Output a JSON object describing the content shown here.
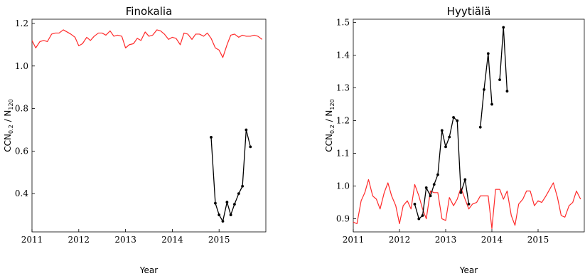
{
  "chart_data": [
    {
      "type": "line",
      "title": "Finokalia",
      "xlabel": "Year",
      "ylabel": "CCN_0.2 / N_120",
      "ylabel_parts": {
        "main": "CCN",
        "sub1": "0.2",
        "mid": " / N",
        "sub2": "120"
      },
      "xlim": [
        2011,
        2016
      ],
      "ylim": [
        0.22,
        1.22
      ],
      "xticks": [
        2011,
        2012,
        2013,
        2014,
        2015
      ],
      "xtick_labels": [
        "2011",
        "2012",
        "2013",
        "2014",
        "2015"
      ],
      "yticks": [
        0.4,
        0.6,
        0.8,
        1.0,
        1.2
      ],
      "ytick_labels": [
        "0.4",
        "0.6",
        "0.8",
        "1.0",
        "1.2"
      ],
      "grid": false,
      "colors": {
        "model": "#ff2a2a",
        "observed": "#000000"
      },
      "series": [
        {
          "style": "line",
          "color": "#ff2a2a",
          "points": [
            [
              2011.0,
              1.12
            ],
            [
              2011.08,
              1.085
            ],
            [
              2011.17,
              1.115
            ],
            [
              2011.25,
              1.12
            ],
            [
              2011.33,
              1.115
            ],
            [
              2011.42,
              1.15
            ],
            [
              2011.5,
              1.155
            ],
            [
              2011.58,
              1.155
            ],
            [
              2011.67,
              1.17
            ],
            [
              2011.75,
              1.16
            ],
            [
              2011.83,
              1.15
            ],
            [
              2011.92,
              1.135
            ],
            [
              2012.0,
              1.095
            ],
            [
              2012.08,
              1.105
            ],
            [
              2012.17,
              1.135
            ],
            [
              2012.25,
              1.12
            ],
            [
              2012.33,
              1.14
            ],
            [
              2012.42,
              1.155
            ],
            [
              2012.5,
              1.155
            ],
            [
              2012.58,
              1.145
            ],
            [
              2012.67,
              1.165
            ],
            [
              2012.75,
              1.14
            ],
            [
              2012.83,
              1.145
            ],
            [
              2012.92,
              1.14
            ],
            [
              2013.0,
              1.085
            ],
            [
              2013.08,
              1.1
            ],
            [
              2013.17,
              1.105
            ],
            [
              2013.25,
              1.13
            ],
            [
              2013.33,
              1.12
            ],
            [
              2013.42,
              1.16
            ],
            [
              2013.5,
              1.14
            ],
            [
              2013.58,
              1.145
            ],
            [
              2013.67,
              1.17
            ],
            [
              2013.75,
              1.165
            ],
            [
              2013.83,
              1.15
            ],
            [
              2013.92,
              1.125
            ],
            [
              2014.0,
              1.135
            ],
            [
              2014.08,
              1.13
            ],
            [
              2014.17,
              1.1
            ],
            [
              2014.25,
              1.155
            ],
            [
              2014.33,
              1.15
            ],
            [
              2014.42,
              1.125
            ],
            [
              2014.5,
              1.15
            ],
            [
              2014.58,
              1.15
            ],
            [
              2014.67,
              1.14
            ],
            [
              2014.75,
              1.155
            ],
            [
              2014.83,
              1.13
            ],
            [
              2014.92,
              1.085
            ],
            [
              2015.0,
              1.075
            ],
            [
              2015.08,
              1.04
            ],
            [
              2015.17,
              1.1
            ],
            [
              2015.25,
              1.145
            ],
            [
              2015.33,
              1.15
            ],
            [
              2015.42,
              1.135
            ],
            [
              2015.5,
              1.145
            ],
            [
              2015.58,
              1.14
            ],
            [
              2015.67,
              1.14
            ],
            [
              2015.75,
              1.145
            ],
            [
              2015.83,
              1.14
            ],
            [
              2015.92,
              1.125
            ]
          ]
        },
        {
          "style": "line-markers",
          "color": "#000000",
          "points": [
            [
              2014.83,
              0.665
            ],
            [
              2014.92,
              0.355
            ],
            [
              2015.0,
              0.3
            ],
            [
              2015.08,
              0.27
            ],
            [
              2015.17,
              0.36
            ],
            [
              2015.25,
              0.3
            ],
            [
              2015.33,
              0.35
            ],
            [
              2015.42,
              0.4
            ],
            [
              2015.5,
              0.435
            ],
            [
              2015.58,
              0.7
            ],
            [
              2015.67,
              0.62
            ]
          ]
        }
      ]
    },
    {
      "type": "line",
      "title": "Hyytiälä",
      "xlabel": "Year",
      "ylabel": "CCN_0.2 / N_120",
      "ylabel_parts": {
        "main": "CCN",
        "sub1": "0.2",
        "mid": " / N",
        "sub2": "120"
      },
      "xlim": [
        2011,
        2016
      ],
      "ylim": [
        0.86,
        1.51
      ],
      "xticks": [
        2011,
        2012,
        2013,
        2014,
        2015
      ],
      "xtick_labels": [
        "2011",
        "2012",
        "2013",
        "2014",
        "2015"
      ],
      "yticks": [
        0.9,
        1.0,
        1.1,
        1.2,
        1.3,
        1.4,
        1.5
      ],
      "ytick_labels": [
        "0.9",
        "1.0",
        "1.1",
        "1.2",
        "1.3",
        "1.4",
        "1.5"
      ],
      "grid": false,
      "colors": {
        "model": "#ff2a2a",
        "observed": "#000000"
      },
      "series": [
        {
          "style": "line",
          "color": "#ff2a2a",
          "points": [
            [
              2011.0,
              0.89
            ],
            [
              2011.08,
              0.885
            ],
            [
              2011.17,
              0.955
            ],
            [
              2011.25,
              0.98
            ],
            [
              2011.33,
              1.02
            ],
            [
              2011.42,
              0.97
            ],
            [
              2011.5,
              0.96
            ],
            [
              2011.58,
              0.93
            ],
            [
              2011.67,
              0.98
            ],
            [
              2011.75,
              1.01
            ],
            [
              2011.83,
              0.97
            ],
            [
              2011.92,
              0.94
            ],
            [
              2012.0,
              0.885
            ],
            [
              2012.08,
              0.94
            ],
            [
              2012.17,
              0.955
            ],
            [
              2012.25,
              0.93
            ],
            [
              2012.33,
              1.005
            ],
            [
              2012.42,
              0.97
            ],
            [
              2012.5,
              0.93
            ],
            [
              2012.58,
              0.9
            ],
            [
              2012.67,
              0.985
            ],
            [
              2012.75,
              0.98
            ],
            [
              2012.83,
              0.98
            ],
            [
              2012.92,
              0.9
            ],
            [
              2013.0,
              0.895
            ],
            [
              2013.08,
              0.965
            ],
            [
              2013.17,
              0.94
            ],
            [
              2013.25,
              0.96
            ],
            [
              2013.33,
              0.995
            ],
            [
              2013.42,
              0.96
            ],
            [
              2013.5,
              0.93
            ],
            [
              2013.58,
              0.945
            ],
            [
              2013.67,
              0.95
            ],
            [
              2013.75,
              0.97
            ],
            [
              2013.83,
              0.97
            ],
            [
              2013.92,
              0.97
            ],
            [
              2014.0,
              0.87
            ],
            [
              2014.08,
              0.99
            ],
            [
              2014.17,
              0.99
            ],
            [
              2014.25,
              0.96
            ],
            [
              2014.33,
              0.985
            ],
            [
              2014.42,
              0.91
            ],
            [
              2014.5,
              0.88
            ],
            [
              2014.58,
              0.945
            ],
            [
              2014.67,
              0.96
            ],
            [
              2014.75,
              0.985
            ],
            [
              2014.83,
              0.985
            ],
            [
              2014.92,
              0.94
            ],
            [
              2015.0,
              0.955
            ],
            [
              2015.08,
              0.95
            ],
            [
              2015.17,
              0.97
            ],
            [
              2015.25,
              0.99
            ],
            [
              2015.33,
              1.01
            ],
            [
              2015.42,
              0.965
            ],
            [
              2015.5,
              0.91
            ],
            [
              2015.58,
              0.905
            ],
            [
              2015.67,
              0.94
            ],
            [
              2015.75,
              0.95
            ],
            [
              2015.83,
              0.985
            ],
            [
              2015.92,
              0.96
            ]
          ]
        },
        {
          "style": "line-markers",
          "color": "#000000",
          "segments": [
            [
              [
                2012.33,
                0.945
              ],
              [
                2012.42,
                0.9
              ],
              [
                2012.5,
                0.91
              ],
              [
                2012.58,
                0.995
              ],
              [
                2012.67,
                0.97
              ],
              [
                2012.75,
                1.005
              ],
              [
                2012.83,
                1.035
              ],
              [
                2012.92,
                1.17
              ],
              [
                2013.0,
                1.12
              ],
              [
                2013.08,
                1.15
              ],
              [
                2013.17,
                1.21
              ],
              [
                2013.25,
                1.2
              ],
              [
                2013.33,
                0.98
              ],
              [
                2013.42,
                1.02
              ],
              [
                2013.5,
                0.945
              ]
            ],
            [
              [
                2013.75,
                1.18
              ],
              [
                2013.83,
                1.295
              ],
              [
                2013.92,
                1.405
              ],
              [
                2014.0,
                1.25
              ]
            ],
            [
              [
                2014.17,
                1.325
              ],
              [
                2014.25,
                1.485
              ],
              [
                2014.33,
                1.29
              ]
            ]
          ]
        }
      ]
    }
  ]
}
